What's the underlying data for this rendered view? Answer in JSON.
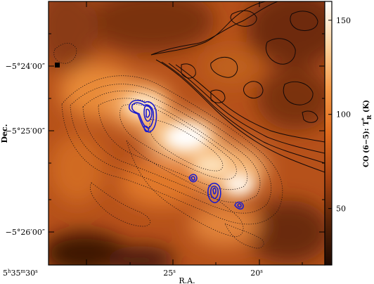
{
  "chart_data": {
    "type": "heatmap",
    "xlabel": "R.A.",
    "ylabel": "Dec.",
    "x_ticks": [
      {
        "h": "5",
        "m": "35",
        "s": "30",
        "value_s": 30
      },
      {
        "label": "25",
        "value_s": 25
      },
      {
        "label": "20",
        "value_s": 20
      }
    ],
    "y_ticks": [
      "−5°24′00″",
      "−5°25′00″",
      "−5°26′00″"
    ],
    "colorbar": {
      "label_main": "CO (6−5): T",
      "label_sup": "*",
      "label_sub": "R",
      "label_tail": " (K)",
      "ticks": [
        50,
        100,
        150
      ],
      "range": [
        20,
        160
      ],
      "colormap": [
        "#1e0a02",
        "#5a2408",
        "#a64210",
        "#e06a1c",
        "#f59a48",
        "#fcd29c",
        "#ffffff"
      ]
    },
    "overlays": {
      "dotted_contours": "emission ridge",
      "solid_black_contours": "upper-right region",
      "blue_contours": "compact sources"
    }
  }
}
